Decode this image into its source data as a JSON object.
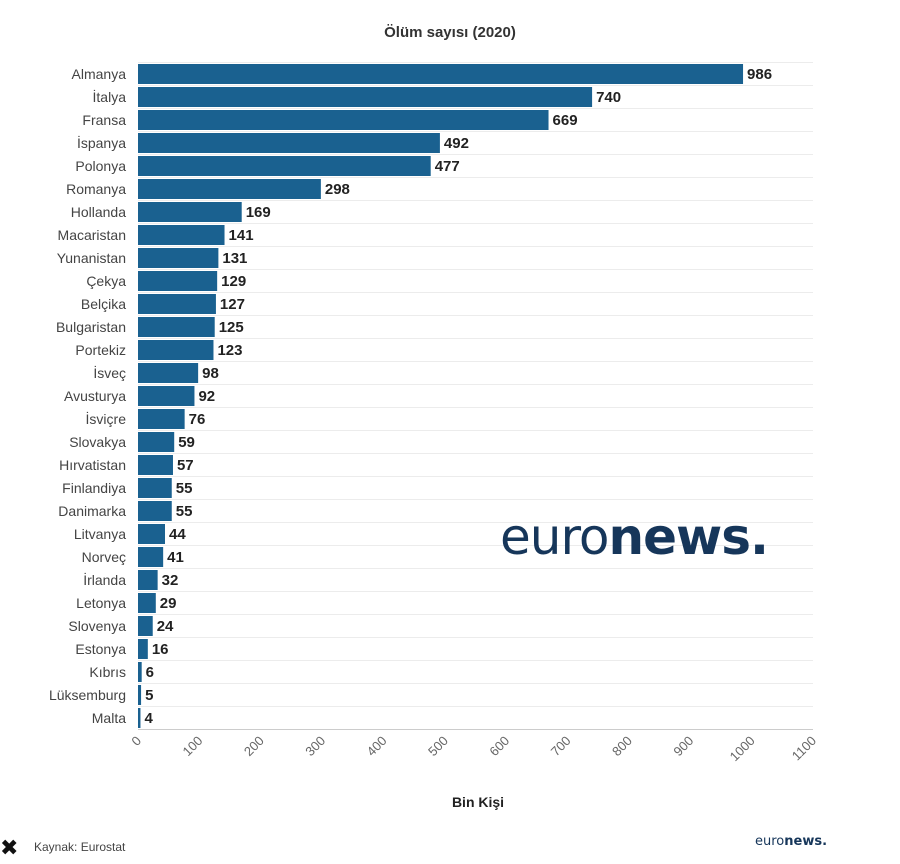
{
  "chart_data": {
    "type": "bar",
    "orientation": "horizontal",
    "title": "Ölüm sayısı (2020)",
    "xlabel": "Bin Kişi",
    "ylabel": "",
    "xlim": [
      0,
      1100
    ],
    "ticks": [
      "0",
      "100",
      "200",
      "300",
      "400",
      "500",
      "600",
      "700",
      "800",
      "900",
      "1000",
      "1100"
    ],
    "categories": [
      "Almanya",
      "İtalya",
      "Fransa",
      "İspanya",
      "Polonya",
      "Romanya",
      "Hollanda",
      "Macaristan",
      "Yunanistan",
      "Çekya",
      "Belçika",
      "Bulgaristan",
      "Portekiz",
      "İsveç",
      "Avusturya",
      "İsviçre",
      "Slovakya",
      "Hırvatistan",
      "Finlandiya",
      "Danimarka",
      "Litvanya",
      "Norveç",
      "İrlanda",
      "Letonya",
      "Slovenya",
      "Estonya",
      "Kıbrıs",
      "Lüksemburg",
      "Malta"
    ],
    "values": [
      986,
      740,
      669,
      492,
      477,
      298,
      169,
      141,
      131,
      129,
      127,
      125,
      123,
      98,
      92,
      76,
      59,
      57,
      55,
      55,
      44,
      41,
      32,
      29,
      24,
      16,
      6,
      5,
      4
    ],
    "grid": true,
    "bar_color": "#1a6190"
  },
  "watermark": {
    "part1": "euro",
    "part2": "news."
  },
  "footer": {
    "source": "Kaynak: Eurostat",
    "logo_part1": "euro",
    "logo_part2": "news."
  }
}
